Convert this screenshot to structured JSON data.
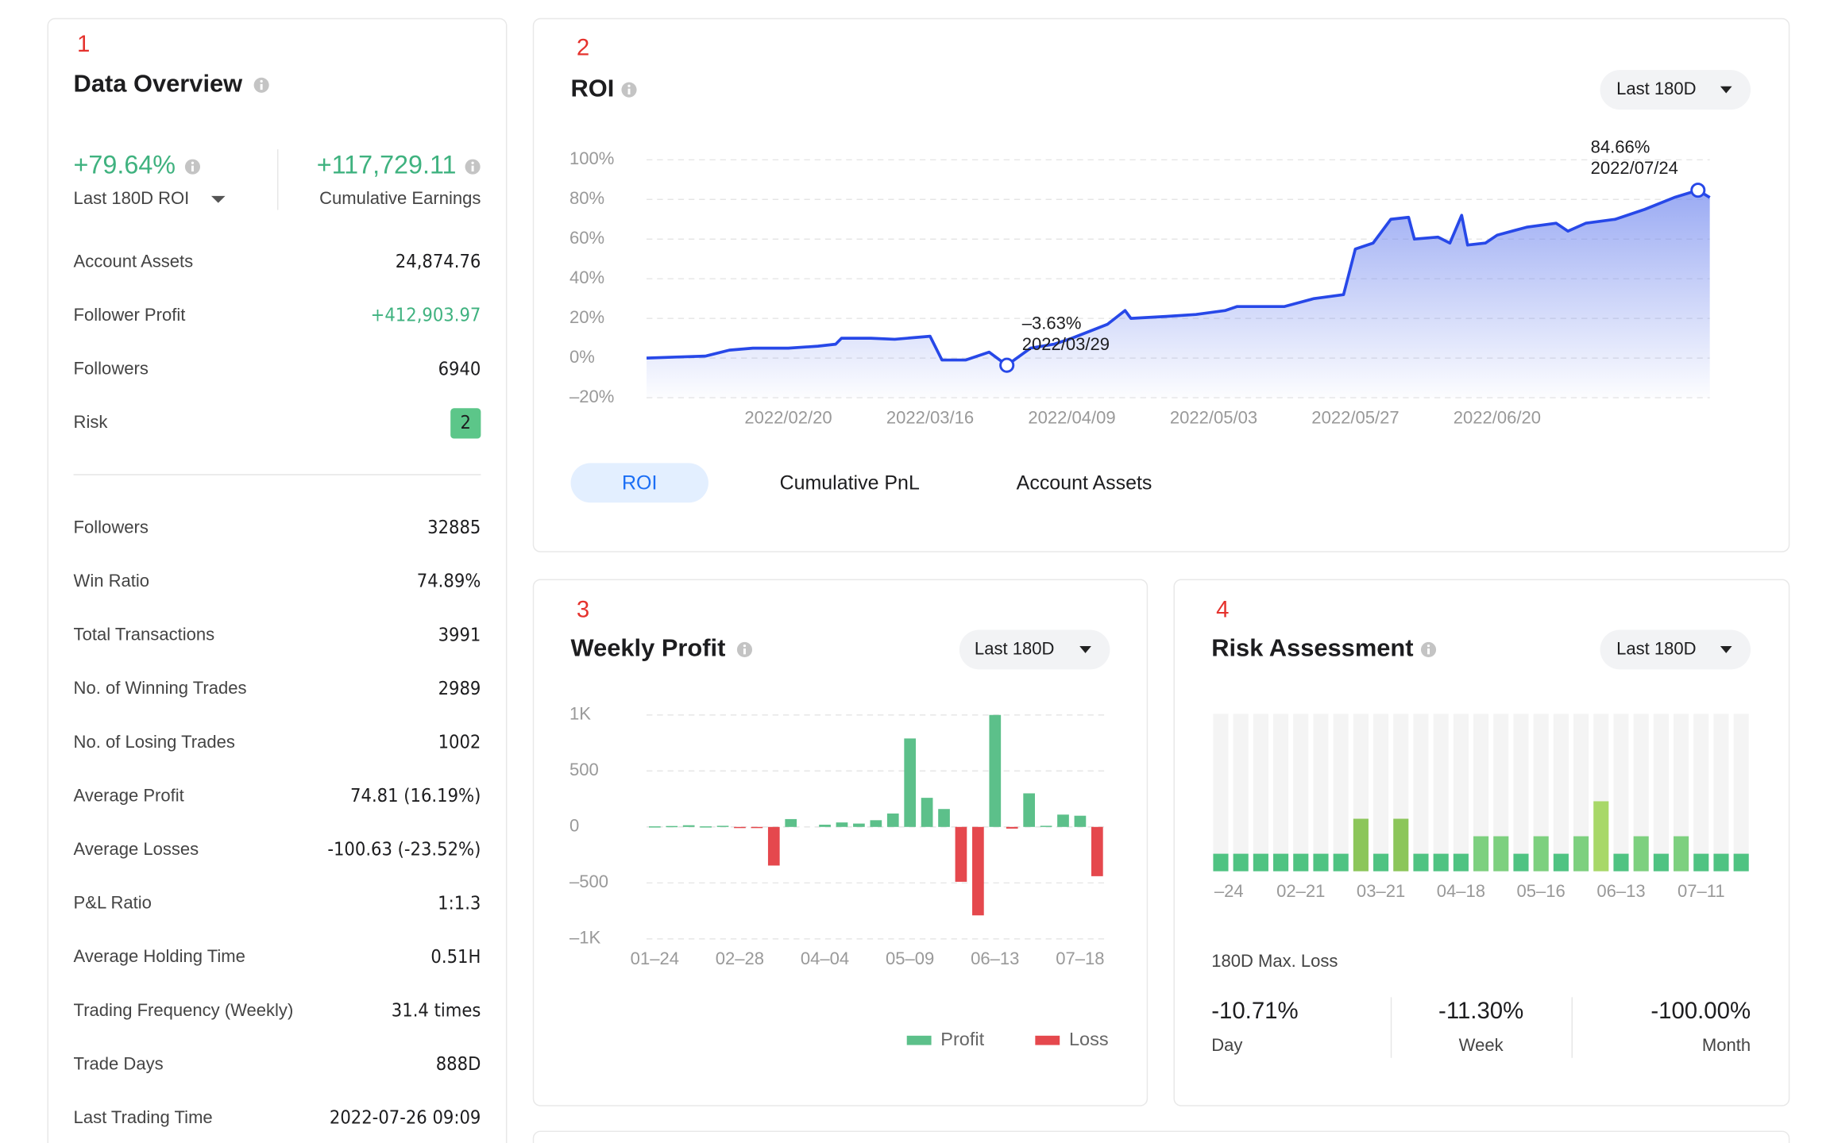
{
  "overview": {
    "number": "1",
    "title": "Data Overview",
    "roi": "+79.64%",
    "roi_label": "Last 180D ROI",
    "earnings": "+117,729.11",
    "earnings_label": "Cumulative Earnings",
    "rows_top": [
      {
        "label": "Account Assets",
        "value": "24,874.76"
      },
      {
        "label": "Follower Profit",
        "value": "+412,903.97"
      },
      {
        "label": "Followers",
        "value": "6940"
      },
      {
        "label": "Risk",
        "value": "2"
      }
    ],
    "rows_bottom": [
      {
        "label": "Followers",
        "value": "32885"
      },
      {
        "label": "Win Ratio",
        "value": "74.89%"
      },
      {
        "label": "Total Transactions",
        "value": "3991"
      },
      {
        "label": "No. of Winning Trades",
        "value": "2989"
      },
      {
        "label": "No. of Losing Trades",
        "value": "1002"
      },
      {
        "label": "Average Profit",
        "value": "74.81 (16.19%)"
      },
      {
        "label": "Average Losses",
        "value": "-100.63 (-23.52%)"
      },
      {
        "label": "P&L Ratio",
        "value": "1:1.3"
      },
      {
        "label": "Average Holding Time",
        "value": "0.51H"
      },
      {
        "label": "Trading Frequency (Weekly)",
        "value": "31.4 times"
      },
      {
        "label": "Trade Days",
        "value": "888D"
      },
      {
        "label": "Last Trading Time",
        "value": "2022-07-26 09:09"
      }
    ]
  },
  "roi_panel": {
    "number": "2",
    "title": "ROI",
    "filter": "Last 180D",
    "tabs": [
      "ROI",
      "Cumulative PnL",
      "Account Assets"
    ]
  },
  "weekly_panel": {
    "number": "3",
    "title": "Weekly Profit",
    "filter": "Last 180D"
  },
  "risk_panel": {
    "number": "4",
    "title": "Risk Assessment",
    "filter": "Last 180D",
    "max_loss_title": "180D Max. Loss",
    "max_loss": [
      {
        "value": "-10.71%",
        "label": "Day"
      },
      {
        "value": "-11.30%",
        "label": "Week"
      },
      {
        "value": "-100.00%",
        "label": "Month"
      }
    ]
  },
  "chart_data": [
    {
      "type": "line",
      "grid": true,
      "x": [
        "2022/01/27",
        "2022/02/01",
        "2022/02/06",
        "2022/02/10",
        "2022/02/14",
        "2022/02/20",
        "2022/02/25",
        "2022/02/28",
        "2022/03/01",
        "2022/03/06",
        "2022/03/10",
        "2022/03/16",
        "2022/03/18",
        "2022/03/22",
        "2022/03/26",
        "2022/03/29",
        "2022/04/02",
        "2022/04/06",
        "2022/04/09",
        "2022/04/15",
        "2022/04/18",
        "2022/04/19",
        "2022/04/25",
        "2022/04/30",
        "2022/05/05",
        "2022/05/07",
        "2022/05/15",
        "2022/05/20",
        "2022/05/25",
        "2022/05/27",
        "2022/05/30",
        "2022/06/02",
        "2022/06/05",
        "2022/06/06",
        "2022/06/10",
        "2022/06/12",
        "2022/06/14",
        "2022/06/15",
        "2022/06/18",
        "2022/06/20",
        "2022/06/25",
        "2022/06/30",
        "2022/07/02",
        "2022/07/05",
        "2022/07/10",
        "2022/07/15",
        "2022/07/20",
        "2022/07/24",
        "2022/07/26"
      ],
      "series": [
        {
          "color": "#2748e8",
          "values": [
            0,
            0.5,
            1,
            4,
            5,
            5,
            6,
            7,
            10,
            10,
            9.5,
            11,
            -1,
            -1,
            3,
            -3.63,
            5,
            7,
            10,
            17,
            24,
            20,
            21,
            22,
            24,
            26,
            26,
            30,
            32,
            55,
            58,
            70,
            71,
            60,
            61,
            58,
            72,
            57,
            58,
            62,
            66,
            68,
            64,
            68,
            70,
            75,
            81,
            84.66,
            81
          ]
        }
      ],
      "xlim": [
        "2022/01/27",
        "2022/07/26"
      ],
      "xticks": [
        "2022/02/20",
        "2022/03/16",
        "2022/04/09",
        "2022/05/03",
        "2022/05/27",
        "2022/06/20"
      ],
      "ylim": [
        -20,
        100
      ],
      "yticks": [
        {
          "value": -20,
          "label": "–20%"
        },
        {
          "value": 0,
          "label": "0%"
        },
        {
          "value": 20,
          "label": "20%"
        },
        {
          "value": 40,
          "label": "40%"
        },
        {
          "value": 60,
          "label": "60%"
        },
        {
          "value": 80,
          "label": "80%"
        },
        {
          "value": 100,
          "label": "100%"
        }
      ],
      "annotations": [
        {
          "x": "2022/03/29",
          "value": -3.63,
          "value_label": "–3.63%"
        },
        {
          "x": "2022/07/24",
          "value": 84.66,
          "value_label": "84.66%"
        }
      ]
    },
    {
      "type": "bar",
      "grid": true,
      "legend": "bottom-right",
      "categories": [
        "01–24",
        null,
        null,
        null,
        null,
        "02–28",
        null,
        null,
        null,
        null,
        "04–04",
        null,
        null,
        null,
        null,
        "05–09",
        null,
        null,
        null,
        null,
        "06–13",
        null,
        null,
        null,
        null,
        "07–18",
        null
      ],
      "series": [
        {
          "name": "Profit",
          "color": "#5cc08a",
          "values": [
            5,
            8,
            15,
            5,
            10,
            null,
            null,
            null,
            70,
            null,
            20,
            40,
            30,
            60,
            120,
            790,
            260,
            160,
            null,
            null,
            1000,
            null,
            300,
            10,
            110,
            100,
            null
          ]
        },
        {
          "name": "Loss",
          "color": "#e5484d",
          "values": [
            null,
            null,
            null,
            null,
            null,
            -5,
            -5,
            -345,
            null,
            null,
            null,
            null,
            null,
            null,
            null,
            null,
            null,
            null,
            -490,
            -790,
            null,
            -15,
            null,
            null,
            null,
            null,
            -440
          ]
        }
      ],
      "ylim": [
        -1000,
        1000
      ],
      "yticks": [
        {
          "value": -1000,
          "label": "–1K"
        },
        {
          "value": -500,
          "label": "–500"
        },
        0,
        500,
        {
          "value": 1000,
          "label": "1K"
        }
      ]
    },
    {
      "type": "bar",
      "background_color": "#f4f4f4",
      "categories": [
        "–24",
        null,
        null,
        null,
        "02–21",
        null,
        null,
        null,
        "03–21",
        null,
        null,
        null,
        "04–18",
        null,
        null,
        null,
        "05–16",
        null,
        null,
        null,
        "06–13",
        null,
        null,
        null,
        "07–11",
        null,
        null
      ],
      "values": [
        1,
        1,
        1,
        1,
        1,
        1,
        1,
        3,
        1,
        3,
        1,
        1,
        1,
        2,
        2,
        1,
        2,
        1,
        2,
        4,
        1,
        2,
        1,
        2,
        1,
        1,
        1
      ],
      "colors": [
        "#4fc382",
        "#4fc382",
        "#4fc382",
        "#4fc382",
        "#4fc382",
        "#4fc382",
        "#4fc382",
        "#8cc65a",
        "#4fc382",
        "#8cc65a",
        "#4fc382",
        "#4fc382",
        "#4fc382",
        "#7dd07f",
        "#7dd07f",
        "#4fc382",
        "#7dd07f",
        "#4fc382",
        "#7dd07f",
        "#a8d868",
        "#4fc382",
        "#7dd07f",
        "#4fc382",
        "#7dd07f",
        "#4fc382",
        "#4fc382",
        "#4fc382"
      ],
      "ylim": [
        0,
        9
      ]
    }
  ]
}
